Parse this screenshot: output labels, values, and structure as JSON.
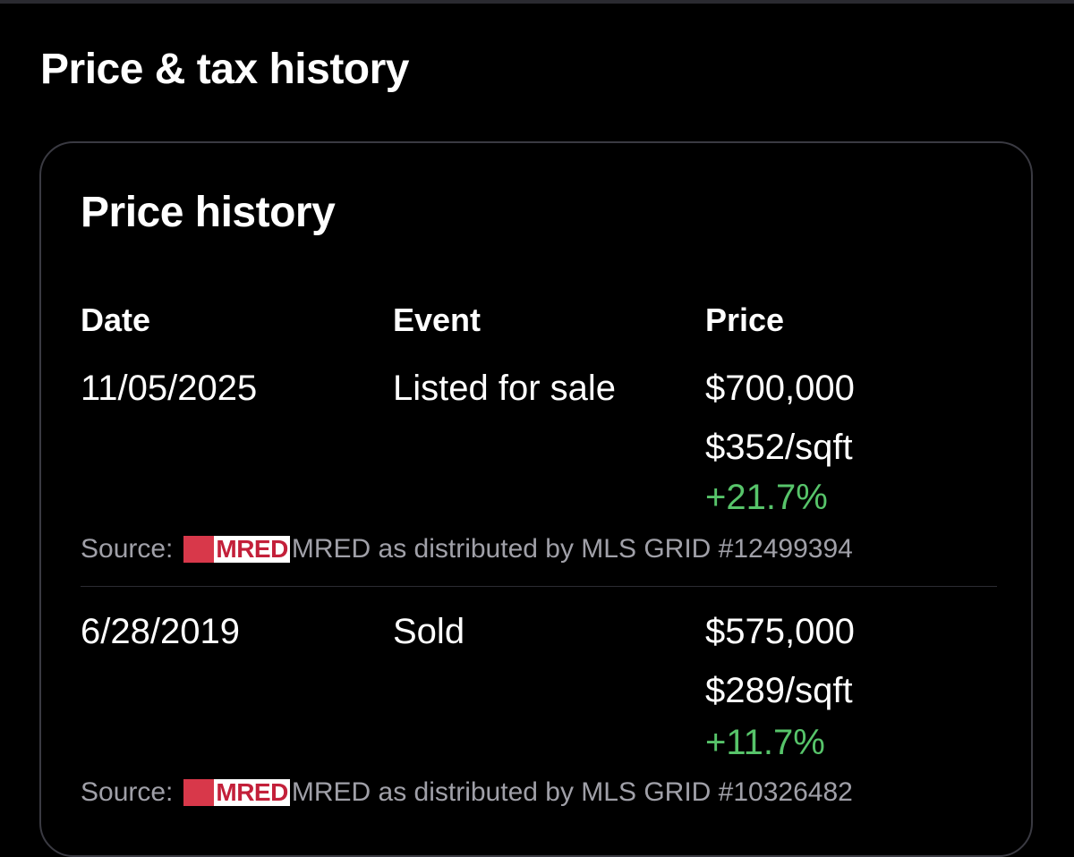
{
  "page": {
    "title": "Price & tax history"
  },
  "price_history": {
    "title": "Price history",
    "columns": {
      "date": "Date",
      "event": "Event",
      "price": "Price"
    },
    "rows": [
      {
        "date": "11/05/2025",
        "event": "Listed for sale",
        "price": "$700,000",
        "price_per_sqft": "$352/sqft",
        "change": "+21.7%",
        "source_label": "Source:",
        "source_logo": "MRED",
        "source_text": "MRED as distributed by MLS GRID #12499394"
      },
      {
        "date": "6/28/2019",
        "event": "Sold",
        "price": "$575,000",
        "price_per_sqft": "$289/sqft",
        "change": "+11.7%",
        "source_label": "Source:",
        "source_logo": "MRED",
        "source_text": "MRED as distributed by MLS GRID #10326482"
      }
    ]
  },
  "colors": {
    "background": "#000000",
    "text": "#ffffff",
    "muted_text": "#a0a0a8",
    "positive_change": "#57c46a",
    "card_border": "#3a3a42",
    "logo_accent": "#c3203a"
  }
}
